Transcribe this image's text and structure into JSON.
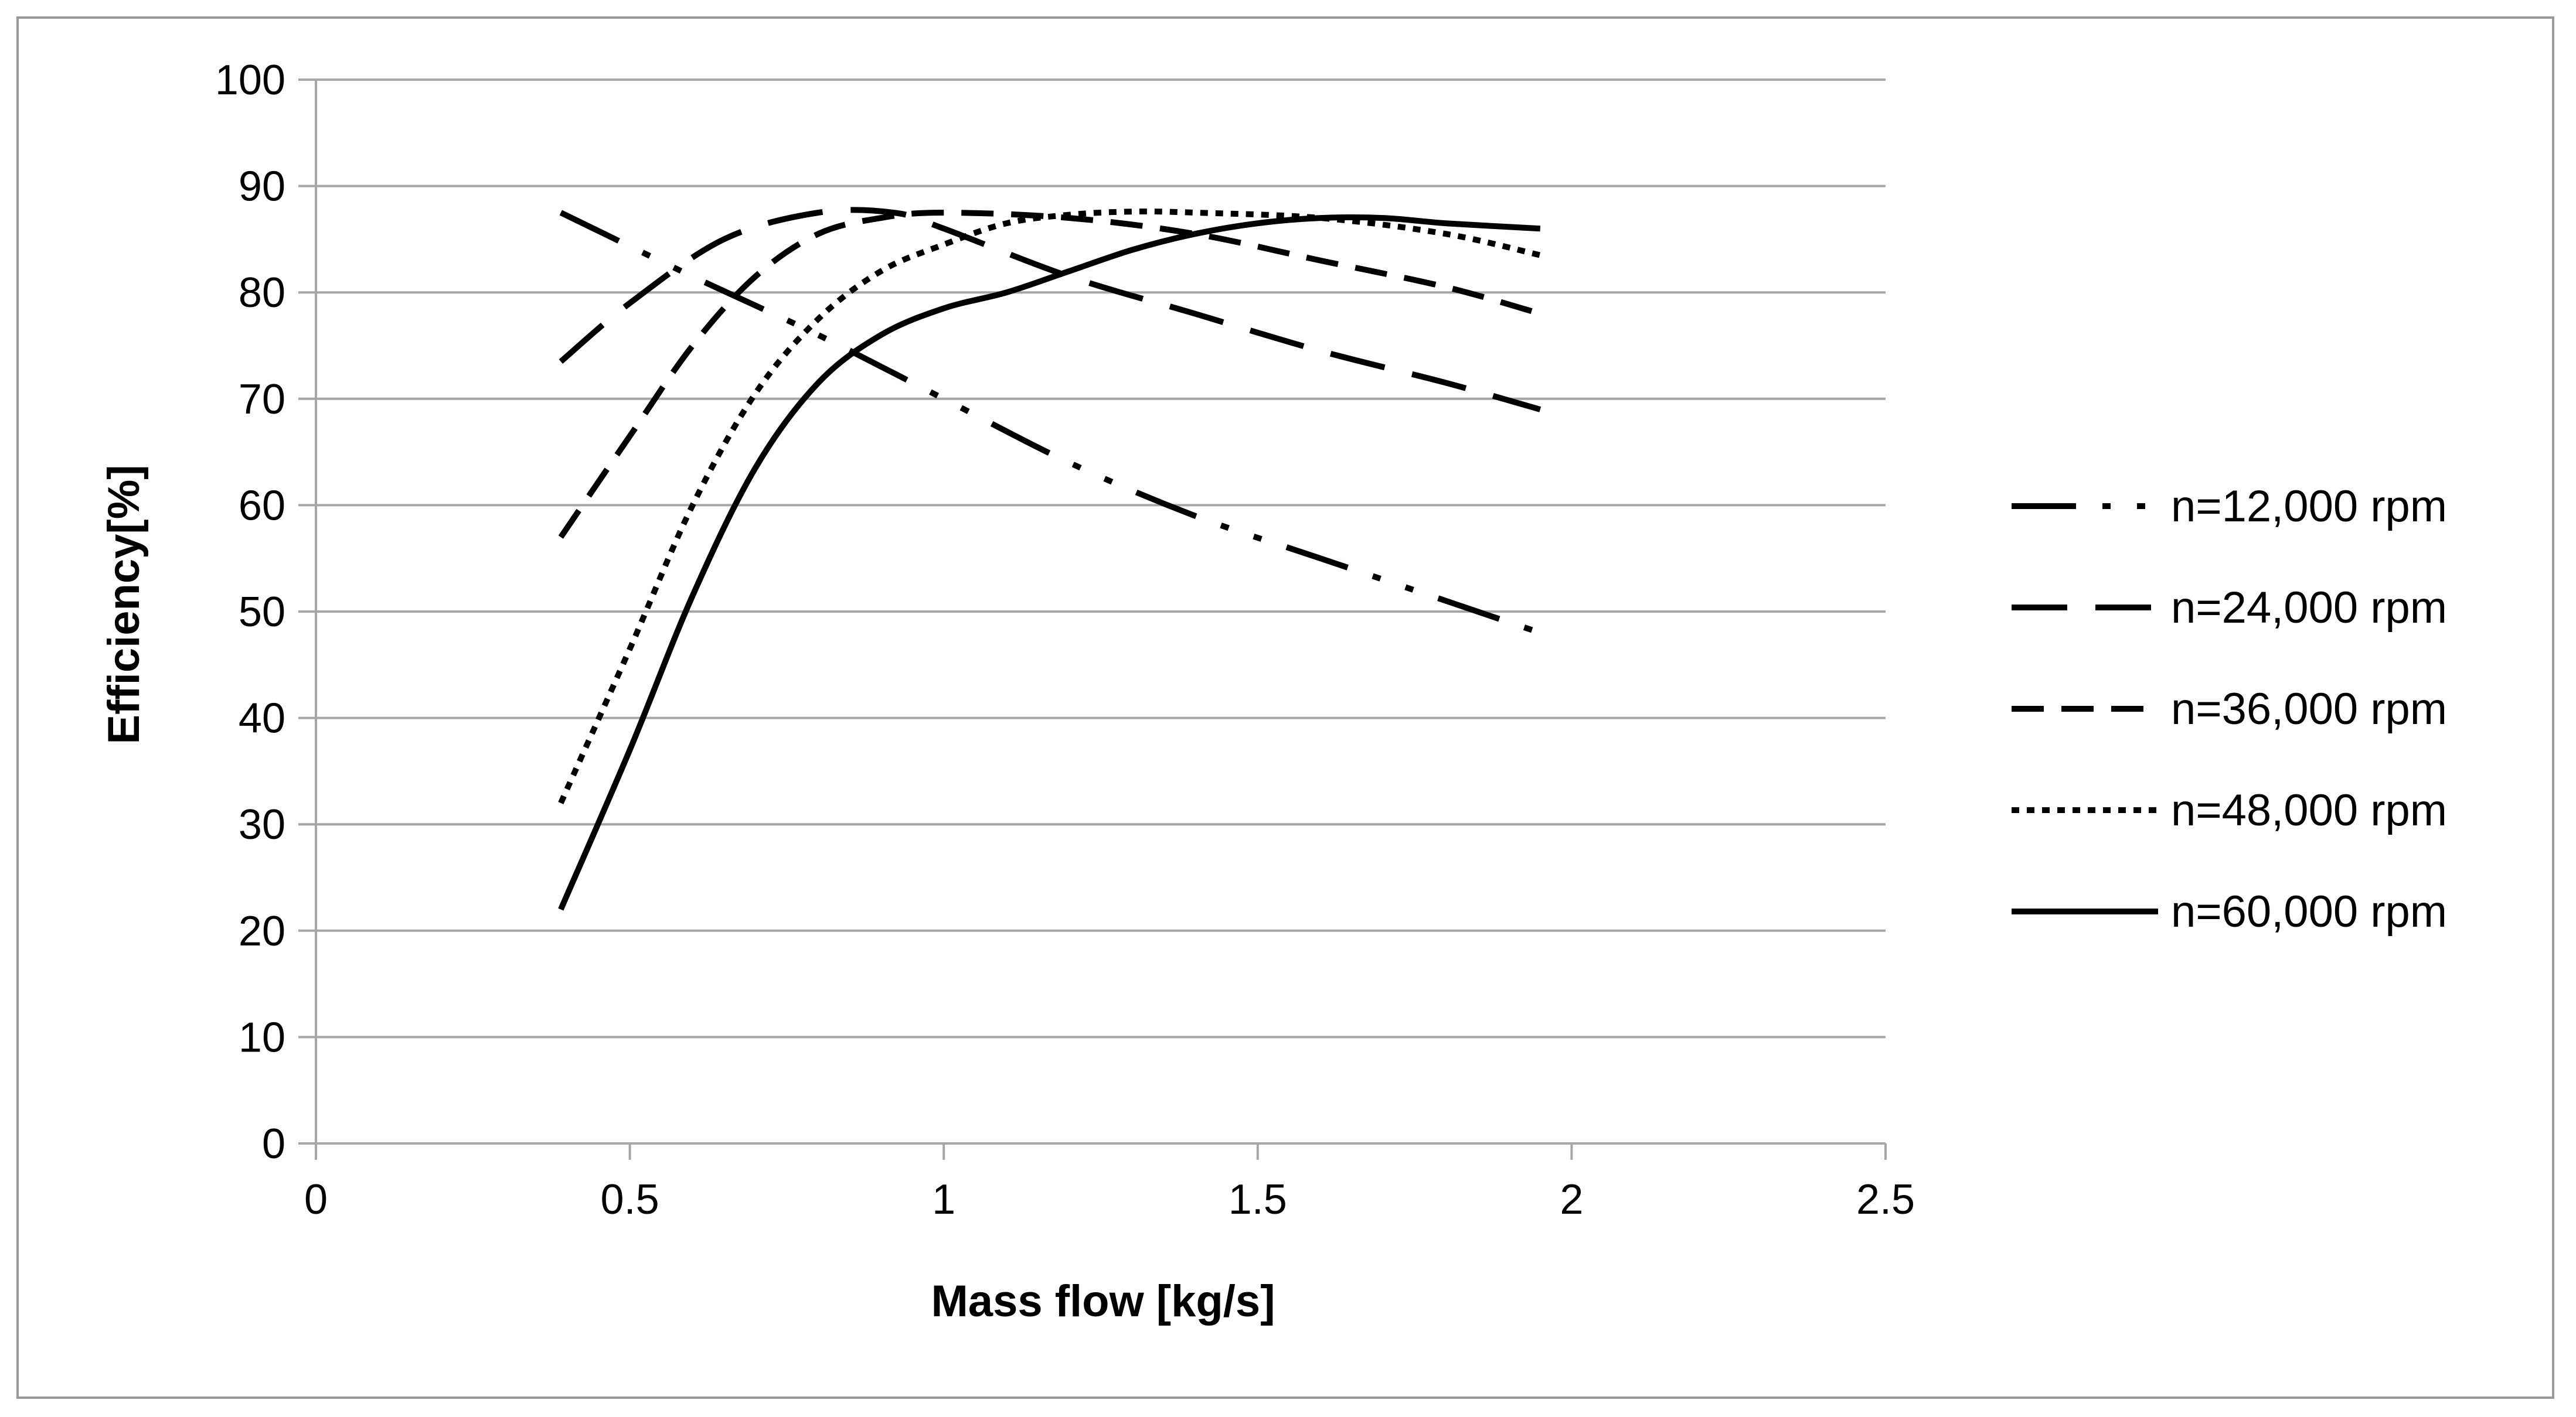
{
  "chart_data": {
    "type": "line",
    "title": "",
    "xlabel": "Mass flow [kg/s]",
    "ylabel": "Efficiency[%]",
    "xlim": [
      0,
      2.5
    ],
    "ylim": [
      0,
      100
    ],
    "xticks": [
      0,
      0.5,
      1,
      1.5,
      2,
      2.5
    ],
    "xtick_labels": [
      "0",
      "0.5",
      "1",
      "1.5",
      "2",
      "2.5"
    ],
    "yticks": [
      0,
      10,
      20,
      30,
      40,
      50,
      60,
      70,
      80,
      90,
      100
    ],
    "ytick_labels": [
      "0",
      "10",
      "20",
      "30",
      "40",
      "50",
      "60",
      "70",
      "80",
      "90",
      "100"
    ],
    "grid": "horizontal",
    "legend_position": "right",
    "series": [
      {
        "name": "n=12,000 rpm",
        "dash": "dash-dot-dot",
        "x": [
          0.39,
          0.6,
          0.8,
          1.0,
          1.2,
          1.4,
          1.6,
          1.8,
          1.95
        ],
        "y": [
          87.5,
          81.5,
          76,
          70,
          64,
          59,
          55,
          51,
          48
        ]
      },
      {
        "name": "n=24,000 rpm",
        "dash": "long-dash",
        "x": [
          0.39,
          0.5,
          0.65,
          0.8,
          0.92,
          1.0,
          1.2,
          1.4,
          1.6,
          1.8,
          1.95
        ],
        "y": [
          73.5,
          79,
          85,
          87.5,
          87.5,
          86,
          81.5,
          78,
          74.5,
          71.5,
          69
        ]
      },
      {
        "name": "n=36,000 rpm",
        "dash": "dash",
        "x": [
          0.39,
          0.5,
          0.6,
          0.7,
          0.8,
          0.9,
          1.0,
          1.2,
          1.4,
          1.6,
          1.8,
          1.95
        ],
        "y": [
          57,
          66.5,
          75,
          81.5,
          85.5,
          87,
          87.5,
          87,
          85.5,
          83,
          80.5,
          78
        ]
      },
      {
        "name": "n=48,000 rpm",
        "dash": "dot",
        "x": [
          0.39,
          0.5,
          0.6,
          0.7,
          0.8,
          0.9,
          1.0,
          1.1,
          1.2,
          1.3,
          1.4,
          1.6,
          1.8,
          1.95
        ],
        "y": [
          32,
          46.5,
          60,
          70.5,
          77.5,
          82,
          84.5,
          86.5,
          87.3,
          87.6,
          87.5,
          87,
          85.5,
          83.5
        ]
      },
      {
        "name": "n=60,000 rpm",
        "dash": "solid",
        "x": [
          0.39,
          0.5,
          0.6,
          0.7,
          0.8,
          0.9,
          1.0,
          1.1,
          1.2,
          1.3,
          1.4,
          1.5,
          1.6,
          1.7,
          1.8,
          1.95
        ],
        "y": [
          22,
          37,
          51.5,
          63.5,
          71.5,
          76,
          78.5,
          80,
          82,
          84,
          85.5,
          86.5,
          87,
          87,
          86.5,
          86
        ]
      }
    ]
  }
}
